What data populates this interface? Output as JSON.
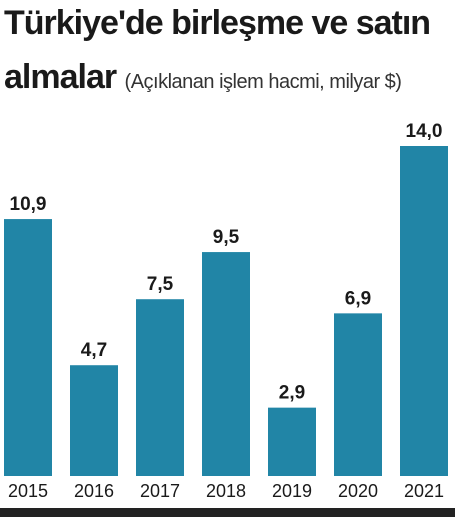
{
  "header": {
    "title_line1": "Türkiye'de birleşme ve satın",
    "title_line2": "almalar",
    "subtitle": "(Açıklanan işlem hacmi, milyar $)"
  },
  "colors": {
    "bar": "#2185a6",
    "text": "#1a1a1a"
  },
  "chart_data": {
    "type": "bar",
    "title": "Türkiye'de birleşme ve satın almalar",
    "subtitle": "(Açıklanan işlem hacmi, milyar $)",
    "categories": [
      "2015",
      "2016",
      "2017",
      "2018",
      "2019",
      "2020",
      "2021"
    ],
    "values": [
      10.9,
      4.7,
      7.5,
      9.5,
      2.9,
      6.9,
      14.0
    ],
    "value_labels": [
      "10,9",
      "4,7",
      "7,5",
      "9,5",
      "2,9",
      "6,9",
      "14,0"
    ],
    "xlabel": "",
    "ylabel": "",
    "ylim": [
      0,
      14.0
    ],
    "grid": false,
    "legend": "none"
  }
}
